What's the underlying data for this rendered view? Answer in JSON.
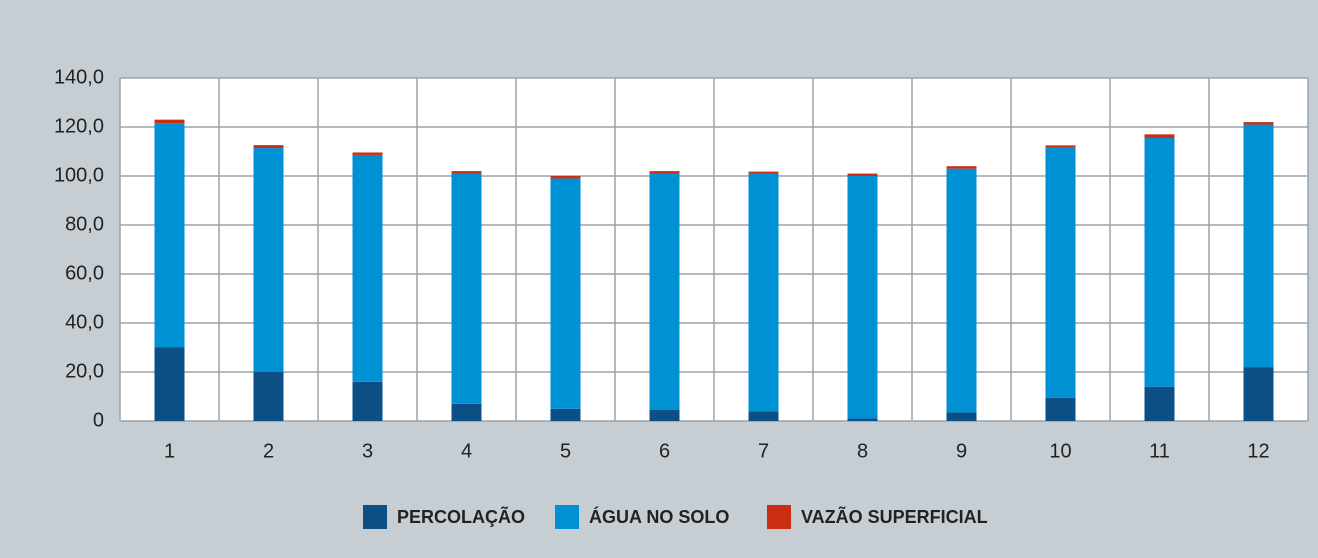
{
  "chart_data": {
    "type": "stacked_bar",
    "categories": [
      "1",
      "2",
      "3",
      "4",
      "5",
      "6",
      "7",
      "8",
      "9",
      "10",
      "11",
      "12"
    ],
    "series": [
      {
        "name": "PERCOLAÇÃO",
        "color": "#0b4f85",
        "values": [
          30,
          20,
          16,
          7,
          5,
          4.5,
          4,
          1,
          3.5,
          9.5,
          14,
          22
        ]
      },
      {
        "name": "ÁGUA NO SOLO",
        "color": "#0091d5",
        "values": [
          91.5,
          91.4,
          92.6,
          94,
          94,
          96.5,
          97,
          99,
          99.5,
          102,
          101.5,
          99
        ]
      },
      {
        "name": "VAZÃO SUPERFICIAL",
        "color": "#cc2e14",
        "values": [
          1.5,
          1.2,
          1,
          1,
          1,
          1,
          0.8,
          1,
          1,
          1,
          1.5,
          1
        ]
      }
    ],
    "ylim": [
      0,
      140
    ],
    "yticks": [
      0,
      {
        "value": 20,
        "label": "20,0"
      },
      {
        "value": 40,
        "label": "40,0"
      },
      {
        "value": 60,
        "label": "60,0"
      },
      {
        "value": 80,
        "label": "80,0"
      },
      {
        "value": 100,
        "label": "100,0"
      },
      {
        "value": 120,
        "label": "120,0"
      },
      {
        "value": 140,
        "label": "140,0"
      }
    ],
    "grid": true
  }
}
